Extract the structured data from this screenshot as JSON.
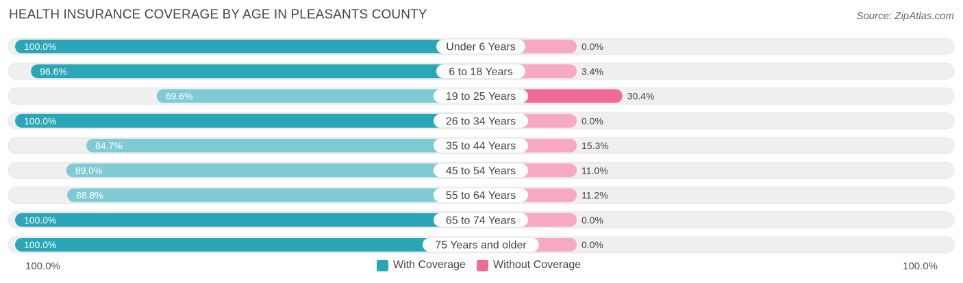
{
  "title": "HEALTH INSURANCE COVERAGE BY AGE IN PLEASANTS COUNTY",
  "source": "Source: ZipAtlas.com",
  "colors": {
    "with_dark": "#2aa6b7",
    "with_light": "#80cad6",
    "without_dark": "#f06b96",
    "without_light": "#f7a8c3",
    "track": "#efefef",
    "label_bg": "#ffffff"
  },
  "axis": {
    "left_label": "100.0%",
    "right_label": "100.0%"
  },
  "legend": [
    {
      "label": "With Coverage",
      "color": "#2aa6b7"
    },
    {
      "label": "Without Coverage",
      "color": "#f06b96"
    }
  ],
  "chart_data": {
    "type": "bar",
    "orientation": "diverging-horizontal",
    "title": "HEALTH INSURANCE COVERAGE BY AGE IN PLEASANTS COUNTY",
    "categories": [
      "Under 6 Years",
      "6 to 18 Years",
      "19 to 25 Years",
      "26 to 34 Years",
      "35 to 44 Years",
      "45 to 54 Years",
      "55 to 64 Years",
      "65 to 74 Years",
      "75 Years and older"
    ],
    "series": [
      {
        "name": "With Coverage",
        "values": [
          100.0,
          96.6,
          69.6,
          100.0,
          84.7,
          89.0,
          88.8,
          100.0,
          100.0
        ],
        "labels": [
          "100.0%",
          "96.6%",
          "69.6%",
          "100.0%",
          "84.7%",
          "89.0%",
          "88.8%",
          "100.0%",
          "100.0%"
        ]
      },
      {
        "name": "Without Coverage",
        "values": [
          0.0,
          3.4,
          30.4,
          0.0,
          15.3,
          11.0,
          11.2,
          0.0,
          0.0
        ],
        "labels": [
          "0.0%",
          "3.4%",
          "30.4%",
          "0.0%",
          "15.3%",
          "11.0%",
          "11.2%",
          "0.0%",
          "0.0%"
        ]
      }
    ],
    "xlim": [
      0,
      100
    ],
    "legend_position": "bottom-center"
  }
}
